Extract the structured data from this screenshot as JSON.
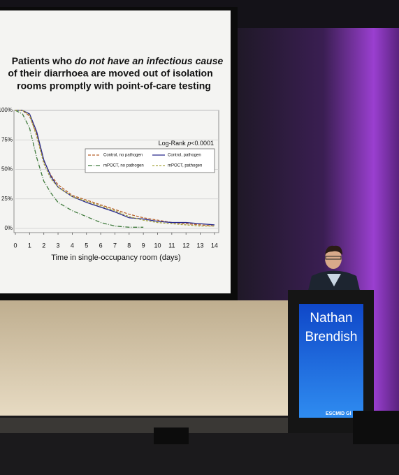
{
  "slide": {
    "title_lines": [
      [
        "Patients who ",
        "do not have an infectious cause"
      ],
      [
        "of their diarrhoea are moved out of isolation"
      ],
      [
        "rooms promptly with point-of-care testing"
      ]
    ]
  },
  "chart_data": {
    "type": "line",
    "annotation": [
      "Log-Rank ",
      "p",
      "<0.0001"
    ],
    "xlabel": "Time in single-occupancy room (days)",
    "x": [
      0,
      0.5,
      1,
      1.5,
      2,
      2.5,
      3,
      4,
      5,
      6,
      7,
      8,
      9,
      10,
      11,
      12,
      13,
      14
    ],
    "series": [
      {
        "name": "Control, no pathogen",
        "color": "#b8602a",
        "dash": "4,2",
        "values": [
          100,
          100,
          95,
          80,
          57,
          45,
          37,
          28,
          24,
          20,
          16,
          12,
          9,
          7,
          5,
          4,
          3,
          2
        ]
      },
      {
        "name": "Control, pathogen",
        "color": "#27288a",
        "dash": "none",
        "values": [
          100,
          100,
          97,
          82,
          58,
          44,
          35,
          27,
          22,
          18,
          14,
          9,
          8,
          6,
          5,
          5,
          4,
          3
        ]
      },
      {
        "name": "mPOCT, no pathogen",
        "color": "#3f7a3c",
        "dash": "6,2,1,2",
        "values": [
          100,
          97,
          85,
          60,
          40,
          30,
          22,
          15,
          10,
          5,
          2,
          1,
          1,
          null,
          null,
          null,
          null,
          null
        ]
      },
      {
        "name": "mPOCT, pathogen",
        "color": "#a3a23c",
        "dash": "3,2",
        "values": [
          100,
          100,
          96,
          78,
          55,
          42,
          35,
          27,
          23,
          19,
          15,
          10,
          7,
          5,
          4,
          3,
          2,
          2
        ]
      }
    ],
    "xlim": [
      0,
      14.3
    ],
    "ylim": [
      0,
      100
    ],
    "xticks": [
      0,
      1,
      2,
      3,
      4,
      5,
      6,
      7,
      8,
      9,
      10,
      11,
      12,
      13,
      14
    ],
    "yticks": [
      {
        "value": 0,
        "label": "0%"
      },
      {
        "value": 25,
        "label": "25%"
      },
      {
        "value": 50,
        "label": "50%"
      },
      {
        "value": 75,
        "label": "75%"
      },
      {
        "value": 100,
        "label": "100%"
      }
    ],
    "grid": true,
    "legend": "center right"
  },
  "lectern": {
    "name_lines": [
      "Nathan",
      "Brendish"
    ],
    "logo": "ESCMID Gl"
  }
}
